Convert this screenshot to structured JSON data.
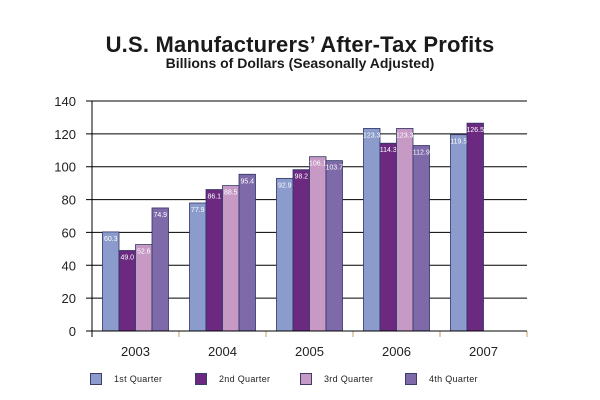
{
  "chart_data": {
    "type": "bar",
    "title": "U.S. Manufacturers’ After-Tax Profits",
    "subtitle": "Billions of Dollars (Seasonally Adjusted)",
    "xlabel": "",
    "ylabel": "",
    "categories": [
      "2003",
      "2004",
      "2005",
      "2006",
      "2007"
    ],
    "ylim": [
      0,
      140
    ],
    "yticks": [
      0,
      20,
      40,
      60,
      80,
      100,
      120,
      140
    ],
    "grid": true,
    "legend_position": "bottom",
    "series": [
      {
        "name": "1st Quarter",
        "color": "#8b9ccc",
        "values": [
          60.3,
          77.9,
          92.9,
          123.3,
          119.5
        ],
        "labels": [
          "60.3",
          "77.9",
          "92.9",
          "123.3",
          "119.5"
        ]
      },
      {
        "name": "2nd Quarter",
        "color": "#6b2a80",
        "values": [
          49.0,
          86.1,
          98.2,
          114.3,
          126.5
        ],
        "labels": [
          "49.0",
          "86.1",
          "98.2",
          "114.3",
          "126.5"
        ]
      },
      {
        "name": "3rd Quarter",
        "color": "#c79ac6",
        "values": [
          52.6,
          88.5,
          106.1,
          123.3,
          null
        ],
        "labels": [
          "52.6",
          "88.5",
          "106.1",
          "123.3",
          null
        ]
      },
      {
        "name": "4th Quarter",
        "color": "#7e6aa8",
        "values": [
          74.9,
          95.4,
          103.7,
          112.9,
          null
        ],
        "labels": [
          "74.9",
          "95.4",
          "103.7",
          "112.9",
          null
        ]
      }
    ]
  }
}
